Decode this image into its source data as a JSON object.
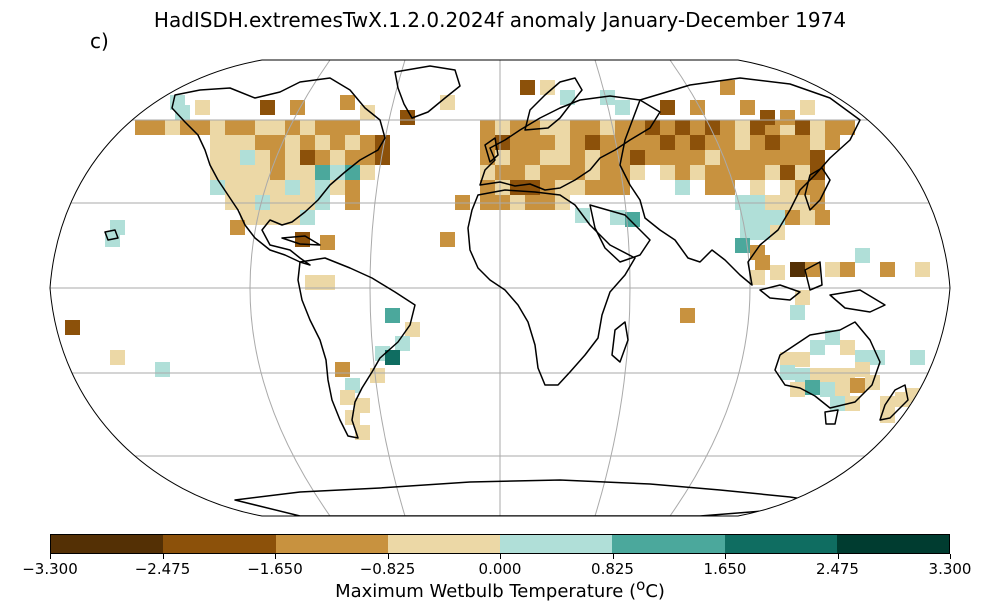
{
  "title": "HadISDH.extremesTwX.1.2.0.2024f anomaly January-December 1974",
  "panel_label": "c)",
  "colorbar": {
    "label_text": "Maximum Wetbulb Temperature (",
    "label_sup": "o",
    "label_unit": "C)",
    "ticks": [
      "−3.300",
      "−2.475",
      "−1.650",
      "−0.825",
      "0.000",
      "0.825",
      "1.650",
      "2.475",
      "3.300"
    ],
    "colors": [
      "#543005",
      "#8c510a",
      "#c8923f",
      "#ecd8a6",
      "#b0dfd8",
      "#4ba89c",
      "#0f6d61",
      "#003c30"
    ]
  },
  "map": {
    "projection": "Robinson",
    "land_outline_color": "#000000",
    "graticule_color": "#aaaaaa"
  }
}
